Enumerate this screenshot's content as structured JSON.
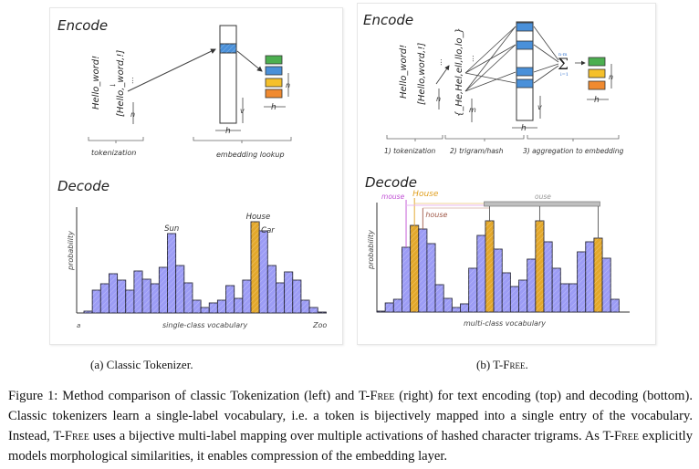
{
  "left_panel": {
    "encode_title": "Encode",
    "decode_title": "Decode",
    "input_text": "Hello_word!",
    "token_list": "[Hello,_word,!]",
    "dim_n": "n",
    "dim_v": "v",
    "dim_h": "h",
    "step_labels": [
      "tokenization",
      "embedding lookup"
    ],
    "ellipsis": "..."
  },
  "right_panel": {
    "encode_title": "Encode",
    "decode_title": "Decode",
    "input_text": "Hello_word!",
    "token_list": "[Hello,word,!]",
    "trigram_list": "{_He,Hel,ell,llo,lo_}",
    "dim_n": "n",
    "dim_m": "m",
    "dim_v": "v",
    "dim_h": "h",
    "sum_upper": "n·m",
    "sum_lower": "i=1",
    "step_labels": [
      "1) tokenization",
      "2) trigram/hash",
      "3) aggregation to embedding"
    ],
    "ellipsis": "..."
  },
  "colors": {
    "bar_fill": "#9c9cf5",
    "bar_highlight": "#e3a82b",
    "embed_blue": "#4a90d9",
    "embed_green": "#4caf50",
    "embed_yellow": "#f5c02b",
    "embed_orange": "#f08a30",
    "mouse_label": "#c04fd4",
    "house_upper_label": "#e0a020",
    "house_lower_label": "#a05a4a",
    "ouse_label": "#999999"
  },
  "chart_data": [
    {
      "type": "bar",
      "title": "Decode",
      "xlabel": "single-class vocabulary",
      "ylabel": "probability",
      "x_start_label": "a",
      "x_end_label": "Zoo",
      "ylim": [
        0,
        1
      ],
      "values": [
        0.02,
        0.25,
        0.32,
        0.43,
        0.36,
        0.25,
        0.46,
        0.37,
        0.32,
        0.5,
        0.87,
        0.52,
        0.33,
        0.14,
        0.06,
        0.11,
        0.14,
        0.3,
        0.16,
        0.36,
        1.0,
        0.9,
        0.52,
        0.33,
        0.45,
        0.36,
        0.14,
        0.06,
        0.01
      ],
      "highlighted": [
        20
      ],
      "annotations": [
        {
          "index": 10,
          "text": "Sun"
        },
        {
          "index": 20,
          "text": "House"
        },
        {
          "index": 21,
          "text": "Car"
        }
      ]
    },
    {
      "type": "bar",
      "title": "Decode",
      "xlabel": "multi-class vocabulary",
      "ylabel": "probability",
      "ylim": [
        0,
        1
      ],
      "values": [
        0.01,
        0.1,
        0.14,
        0.71,
        0.95,
        0.91,
        0.75,
        0.3,
        0.15,
        0.05,
        0.09,
        0.48,
        0.84,
        1.0,
        0.69,
        0.43,
        0.28,
        0.35,
        0.58,
        1.0,
        0.77,
        0.48,
        0.31,
        0.31,
        0.66,
        0.77,
        0.81,
        0.59,
        0.14
      ],
      "highlighted": [
        4,
        13,
        19,
        26
      ],
      "annotations": [
        {
          "index": 3,
          "text": "mouse"
        },
        {
          "index": 4,
          "text": "House"
        },
        {
          "index": 5,
          "text": "house"
        },
        {
          "indices": [
            13,
            19,
            26
          ],
          "text": "ouse"
        }
      ]
    }
  ],
  "captions": {
    "sub_a": "(a) Classic Tokenizer.",
    "sub_b_prefix": "(b) T-F",
    "sub_b_sc": "ree",
    "sub_b_suffix": ".",
    "figure": [
      {
        "t": "Figure 1: Method comparison of classic Tokenization (left) and T-F"
      },
      {
        "sc": "ree"
      },
      {
        "t": " (right) for text encoding (top) and decoding (bottom). Classic tokenizers learn a single-label vocabulary, i.e. a token is bijectively mapped into a single entry of the vocabulary. Instead, T-F"
      },
      {
        "sc": "ree"
      },
      {
        "t": " uses a bijective multi-label mapping over multiple activations of hashed character trigrams. As T-F"
      },
      {
        "sc": "ree"
      },
      {
        "t": " explicitly models morphological similarities, it enables compression of the embedding layer."
      }
    ]
  }
}
